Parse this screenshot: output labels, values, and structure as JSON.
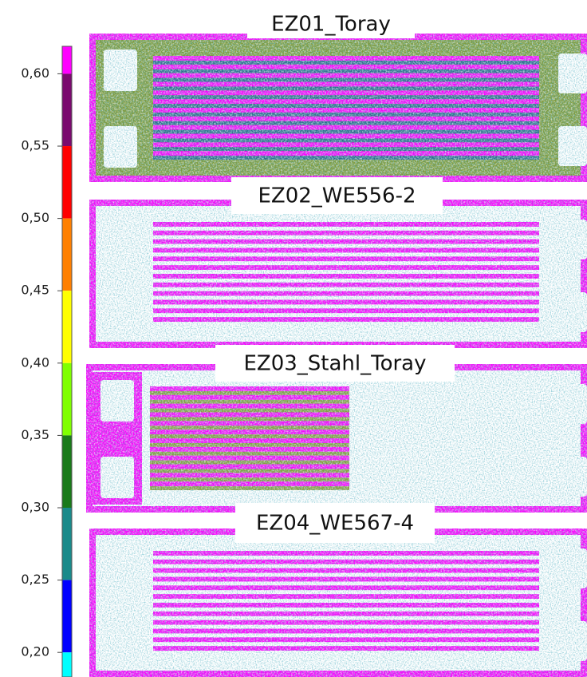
{
  "colorbar": {
    "range": [
      0.183,
      0.619
    ],
    "ticks": [
      {
        "value": 0.6,
        "label": "0,60"
      },
      {
        "value": 0.55,
        "label": "0,55"
      },
      {
        "value": 0.5,
        "label": "0,50"
      },
      {
        "value": 0.45,
        "label": "0,45"
      },
      {
        "value": 0.4,
        "label": "0,40"
      },
      {
        "value": 0.35,
        "label": "0,35"
      },
      {
        "value": 0.3,
        "label": "0,30"
      },
      {
        "value": 0.25,
        "label": "0,25"
      },
      {
        "value": 0.2,
        "label": "0,20"
      }
    ],
    "segments": [
      {
        "from": 0.6,
        "to": 0.619,
        "color": "#ff00ff"
      },
      {
        "from": 0.55,
        "to": 0.6,
        "color": "#7a0a6e"
      },
      {
        "from": 0.5,
        "to": 0.55,
        "color": "#ff0000"
      },
      {
        "from": 0.45,
        "to": 0.5,
        "color": "#ff8000"
      },
      {
        "from": 0.4,
        "to": 0.45,
        "color": "#ffff00"
      },
      {
        "from": 0.35,
        "to": 0.4,
        "color": "#80ff00"
      },
      {
        "from": 0.3,
        "to": 0.35,
        "color": "#1a7a1a"
      },
      {
        "from": 0.25,
        "to": 0.3,
        "color": "#1a8a8a"
      },
      {
        "from": 0.2,
        "to": 0.25,
        "color": "#0000ff"
      },
      {
        "from": 0.183,
        "to": 0.2,
        "color": "#00ffff"
      }
    ]
  },
  "panels": [
    {
      "label": "EZ01_Toray"
    },
    {
      "label": "EZ02_WE556-2"
    },
    {
      "label": "EZ03_Stahl_Toray"
    },
    {
      "label": "EZ04_WE567-4"
    }
  ]
}
